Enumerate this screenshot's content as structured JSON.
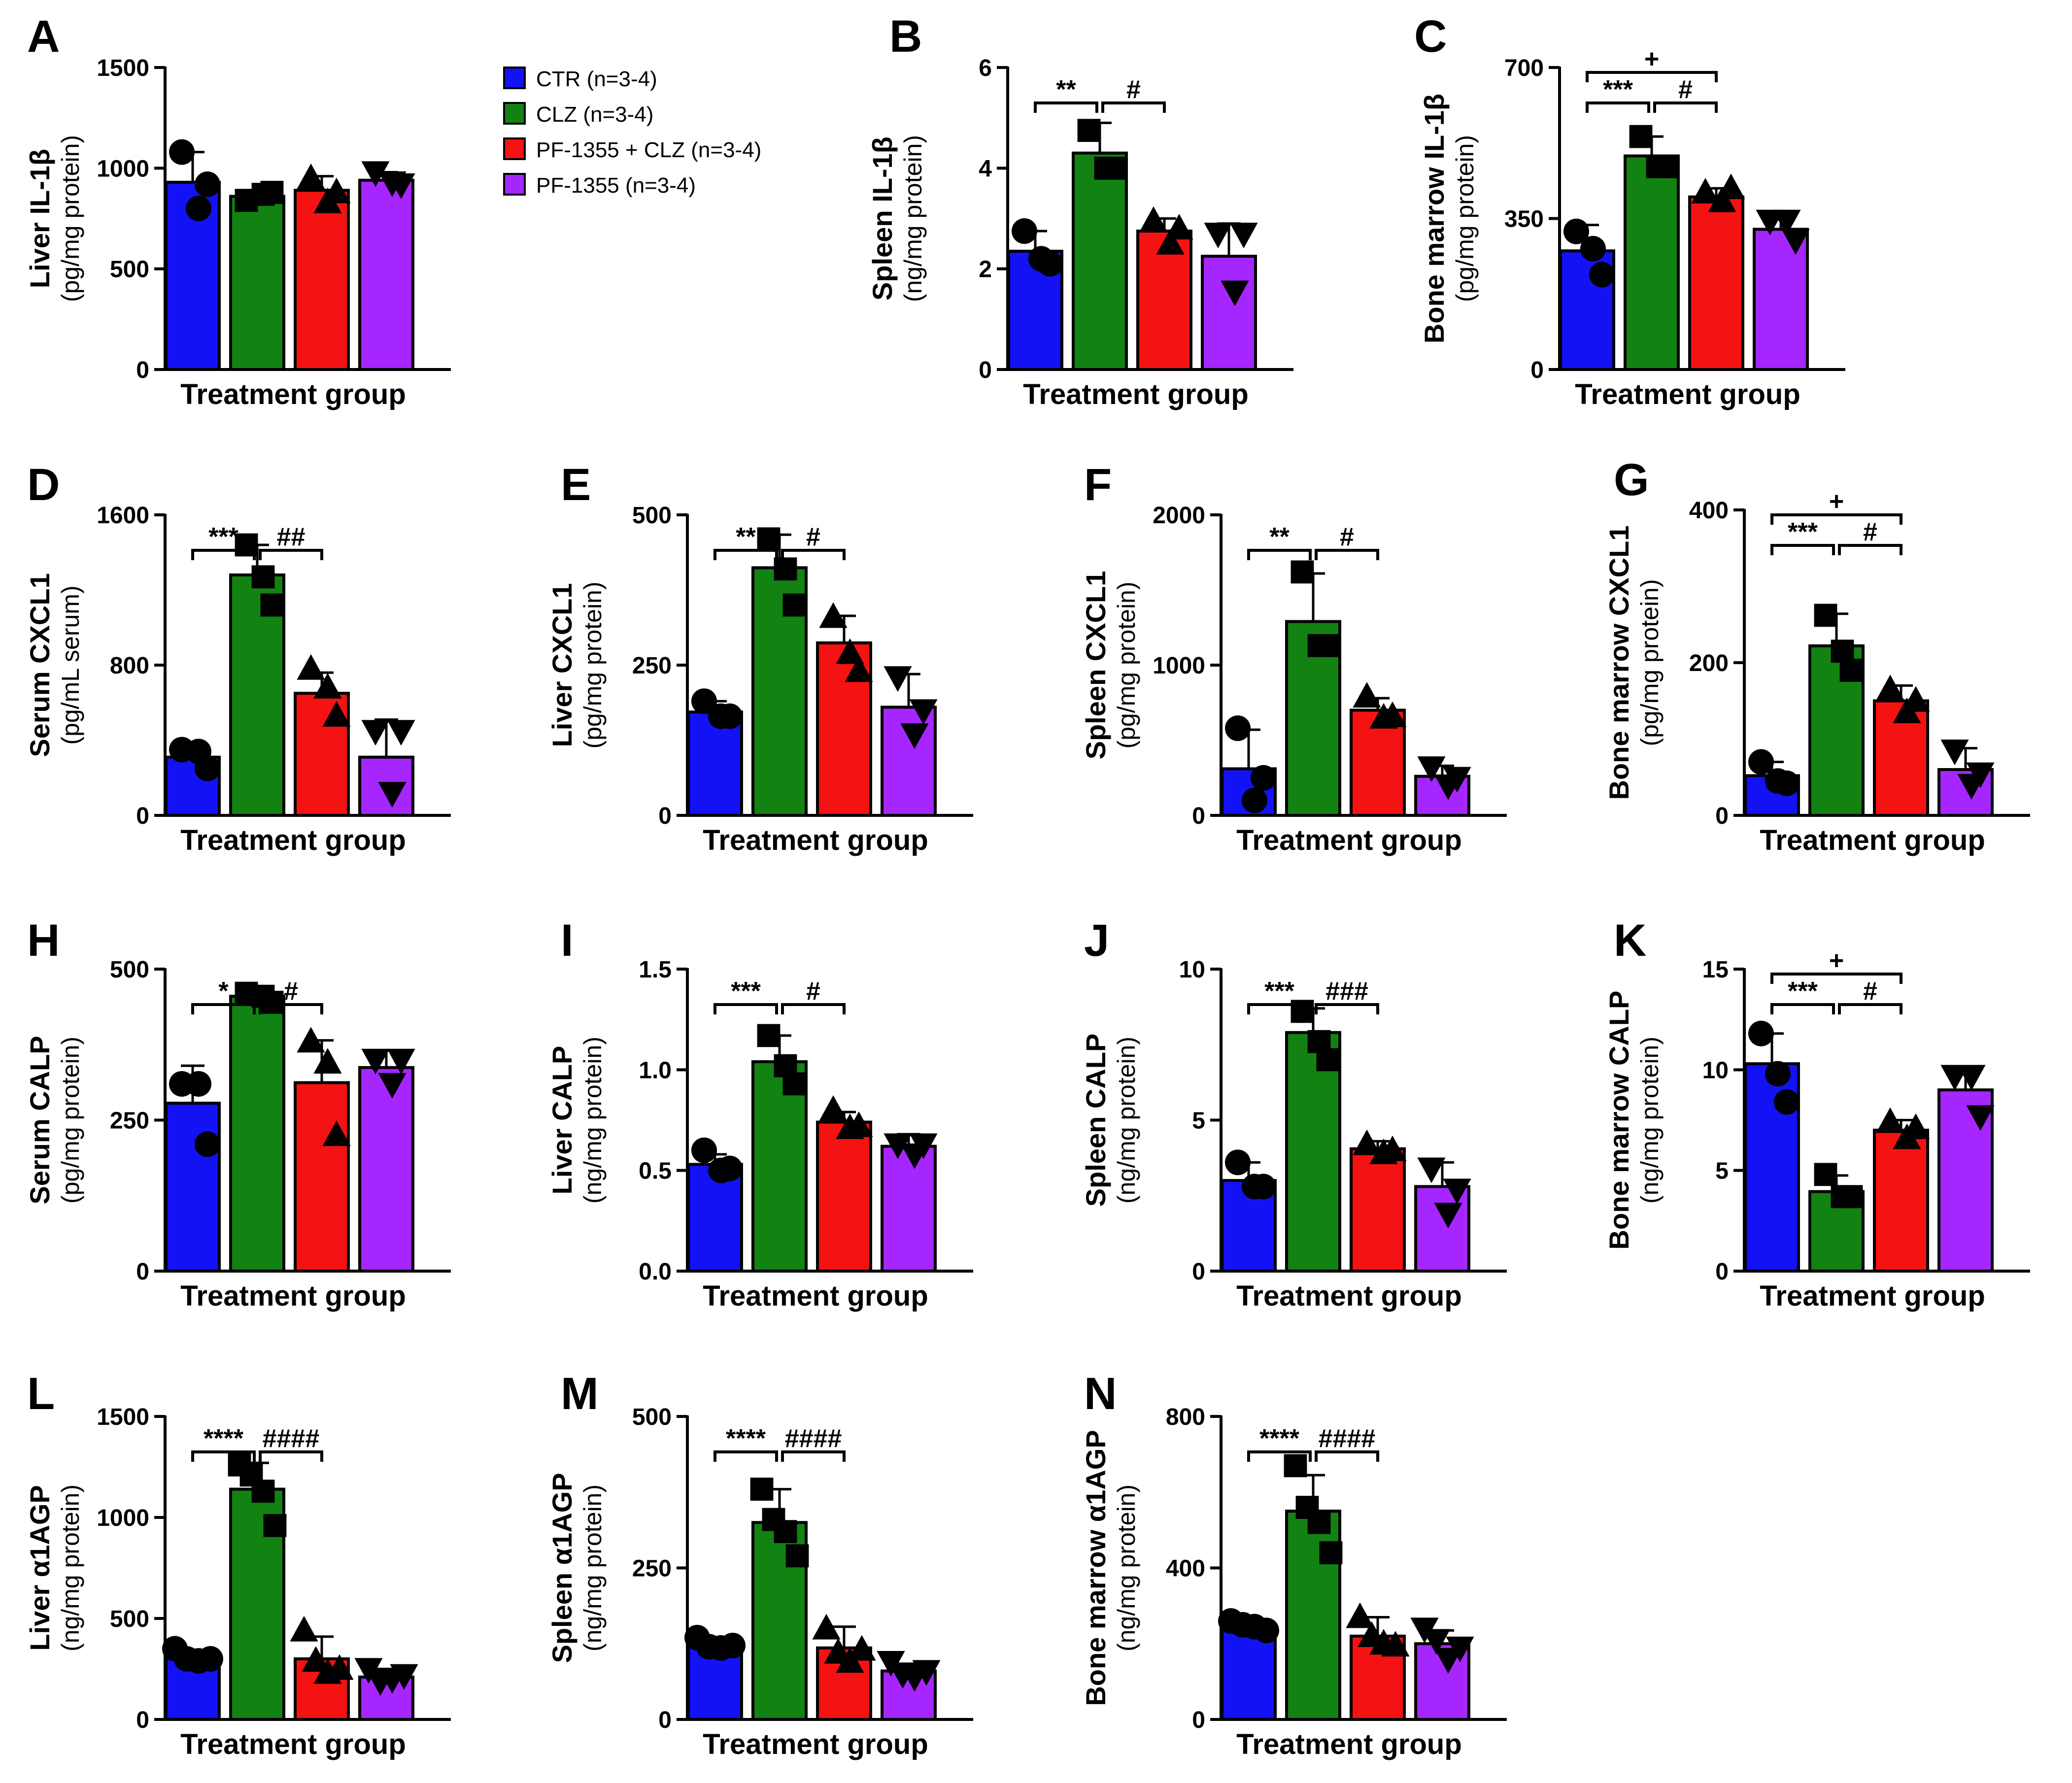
{
  "legend": {
    "entries": [
      {
        "label": "CTR (n=3-4)",
        "color": "#1212f5"
      },
      {
        "label": "CLZ (n=3-4)",
        "color": "#128212"
      },
      {
        "label": "PF-1355 + CLZ (n=3-4)",
        "color": "#f51212"
      },
      {
        "label": "PF-1355 (n=3-4)",
        "color": "#a526ff"
      }
    ]
  },
  "chart_data": [
    {
      "id": "A",
      "type": "bar",
      "ylabel": "Liver IL-1β",
      "yunit": "(pg/mg protein)",
      "xlabel": "Treatment group",
      "ylim": [
        0,
        1500
      ],
      "yticks": [
        "0",
        "500",
        "1000",
        "1500"
      ],
      "means": [
        930,
        860,
        890,
        940
      ],
      "sd": [
        150,
        30,
        70,
        40
      ],
      "points": [
        [
          1080,
          800,
          920
        ],
        [
          840,
          870,
          880
        ],
        [
          950,
          830,
          880
        ],
        [
          980,
          930,
          920
        ]
      ],
      "sig": []
    },
    {
      "id": "B",
      "type": "bar",
      "ylabel": "Spleen IL-1β",
      "yunit": "(ng/mg protein)",
      "xlabel": "Treatment group",
      "ylim": [
        0,
        6
      ],
      "yticks": [
        "0",
        "2",
        "4",
        "6"
      ],
      "means": [
        2.35,
        4.3,
        2.75,
        2.25
      ],
      "sd": [
        0.4,
        0.6,
        0.25,
        0.65
      ],
      "points": [
        [
          2.75,
          2.2,
          2.1
        ],
        [
          4.75,
          4.0,
          4.0
        ],
        [
          2.95,
          2.5,
          2.8
        ],
        [
          2.7,
          1.55,
          2.7
        ]
      ],
      "sig": [
        {
          "from": 0,
          "to": 1,
          "label": "**",
          "level": 0
        },
        {
          "from": 1,
          "to": 2,
          "label": "#",
          "level": 0
        }
      ]
    },
    {
      "id": "C",
      "type": "bar",
      "ylabel": "Bone marrow IL-1β",
      "yunit": "(pg/mg protein)",
      "xlabel": "Treatment group",
      "ylim": [
        0,
        700
      ],
      "yticks": [
        "0",
        "350",
        "700"
      ],
      "means": [
        275,
        495,
        400,
        325
      ],
      "sd": [
        60,
        45,
        20,
        30
      ],
      "points": [
        [
          320,
          280,
          220
        ],
        [
          540,
          470,
          470
        ],
        [
          410,
          390,
          420
        ],
        [
          345,
          345,
          300
        ]
      ],
      "sig": [
        {
          "from": 0,
          "to": 1,
          "label": "***",
          "level": 0
        },
        {
          "from": 1,
          "to": 2,
          "label": "#",
          "level": 0
        },
        {
          "from": 0,
          "to": 2,
          "label": "+",
          "level": 1
        }
      ]
    },
    {
      "id": "D",
      "type": "bar",
      "ylabel": "Serum CXCL1",
      "yunit": "(pg/mL serum)",
      "xlabel": "Treatment group",
      "ylim": [
        0,
        1600
      ],
      "yticks": [
        "0",
        "800",
        "1600"
      ],
      "means": [
        310,
        1280,
        650,
        310
      ],
      "sd": [
        50,
        160,
        110,
        200
      ],
      "points": [
        [
          350,
          340,
          250
        ],
        [
          1440,
          1270,
          1120
        ],
        [
          780,
          680,
          530
        ],
        [
          450,
          120,
          450
        ]
      ],
      "sig": [
        {
          "from": 0,
          "to": 1,
          "label": "***",
          "level": 0
        },
        {
          "from": 1,
          "to": 2,
          "label": "##",
          "level": 0
        }
      ]
    },
    {
      "id": "E",
      "type": "bar",
      "ylabel": "Liver CXCL1",
      "yunit": "(pg/mg protein)",
      "xlabel": "Treatment group",
      "ylim": [
        0,
        500
      ],
      "yticks": [
        "0",
        "250",
        "500"
      ],
      "means": [
        172,
        412,
        287,
        180
      ],
      "sd": [
        18,
        55,
        45,
        55
      ],
      "points": [
        [
          190,
          165,
          165
        ],
        [
          460,
          410,
          350
        ],
        [
          330,
          270,
          240
        ],
        [
          230,
          135,
          175
        ]
      ],
      "sig": [
        {
          "from": 0,
          "to": 1,
          "label": "**",
          "level": 0
        },
        {
          "from": 1,
          "to": 2,
          "label": "#",
          "level": 0
        }
      ]
    },
    {
      "id": "F",
      "type": "bar",
      "ylabel": "Spleen CXCL1",
      "yunit": "(pg/mg protein)",
      "xlabel": "Treatment group",
      "ylim": [
        0,
        2000
      ],
      "yticks": [
        "0",
        "1000",
        "2000"
      ],
      "means": [
        310,
        1290,
        700,
        260
      ],
      "sd": [
        260,
        320,
        80,
        70
      ],
      "points": [
        [
          580,
          100,
          250
        ],
        [
          1620,
          1130,
          1130
        ],
        [
          790,
          650,
          660
        ],
        [
          320,
          200,
          250
        ]
      ],
      "sig": [
        {
          "from": 0,
          "to": 1,
          "label": "**",
          "level": 0
        },
        {
          "from": 1,
          "to": 2,
          "label": "#",
          "level": 0
        }
      ]
    },
    {
      "id": "G",
      "type": "bar",
      "ylabel": "Bone marrow CXCL1",
      "yunit": "(pg/mg protein)",
      "xlabel": "Treatment group",
      "ylim": [
        0,
        400
      ],
      "yticks": [
        "0",
        "200",
        "400"
      ],
      "means": [
        52,
        222,
        150,
        60
      ],
      "sd": [
        18,
        42,
        20,
        28
      ],
      "points": [
        [
          70,
          45,
          42
        ],
        [
          262,
          215,
          190
        ],
        [
          165,
          135,
          150
        ],
        [
          85,
          40,
          55
        ]
      ],
      "sig": [
        {
          "from": 0,
          "to": 1,
          "label": "***",
          "level": 0
        },
        {
          "from": 1,
          "to": 2,
          "label": "#",
          "level": 0
        },
        {
          "from": 0,
          "to": 2,
          "label": "+",
          "level": 1
        }
      ]
    },
    {
      "id": "H",
      "type": "bar",
      "ylabel": "Serum CALP",
      "yunit": "(pg/mg protein)",
      "xlabel": "Treatment group",
      "ylim": [
        0,
        500
      ],
      "yticks": [
        "0",
        "250",
        "500"
      ],
      "means": [
        278,
        455,
        312,
        337
      ],
      "sd": [
        62,
        12,
        70,
        28
      ],
      "points": [
        [
          310,
          310,
          210
        ],
        [
          460,
          455,
          445
        ],
        [
          380,
          345,
          225
        ],
        [
          350,
          310,
          350
        ]
      ],
      "sig": [
        {
          "from": 0,
          "to": 1,
          "label": "*",
          "level": 0
        },
        {
          "from": 1,
          "to": 2,
          "label": "#",
          "level": 0
        }
      ]
    },
    {
      "id": "I",
      "type": "bar",
      "ylabel": "Liver CALP",
      "yunit": "(ng/mg protein)",
      "xlabel": "Treatment group",
      "ylim": [
        0,
        1.5
      ],
      "yticks": [
        "0.0",
        "0.5",
        "1.0",
        "1.5"
      ],
      "means": [
        0.53,
        1.04,
        0.74,
        0.62
      ],
      "sd": [
        0.05,
        0.13,
        0.05,
        0.06
      ],
      "points": [
        [
          0.6,
          0.5,
          0.51
        ],
        [
          1.17,
          1.02,
          0.93
        ],
        [
          0.8,
          0.71,
          0.72
        ],
        [
          0.63,
          0.58,
          0.63
        ]
      ],
      "sig": [
        {
          "from": 0,
          "to": 1,
          "label": "***",
          "level": 0
        },
        {
          "from": 1,
          "to": 2,
          "label": "#",
          "level": 0
        }
      ]
    },
    {
      "id": "J",
      "type": "bar",
      "ylabel": "Spleen  CALP",
      "yunit": "(ng/mg protein)",
      "xlabel": "Treatment group",
      "ylim": [
        0,
        10
      ],
      "yticks": [
        "0",
        "5",
        "10"
      ],
      "means": [
        3.0,
        7.9,
        4.05,
        2.8
      ],
      "sd": [
        0.6,
        0.8,
        0.25,
        0.8
      ],
      "points": [
        [
          3.6,
          2.8,
          2.8
        ],
        [
          8.6,
          7.6,
          7.0
        ],
        [
          4.2,
          3.9,
          4.0
        ],
        [
          3.4,
          1.9,
          2.7
        ]
      ],
      "sig": [
        {
          "from": 0,
          "to": 1,
          "label": "***",
          "level": 0
        },
        {
          "from": 1,
          "to": 2,
          "label": "###",
          "level": 0
        }
      ]
    },
    {
      "id": "K",
      "type": "bar",
      "ylabel": "Bone marrow CALP",
      "yunit": "(ng/mg protein)",
      "xlabel": "Treatment group",
      "ylim": [
        0,
        15
      ],
      "yticks": [
        "0",
        "5",
        "10",
        "15"
      ],
      "means": [
        10.3,
        3.95,
        7.0,
        9.0
      ],
      "sd": [
        1.5,
        0.8,
        0.5,
        0.9
      ],
      "points": [
        [
          11.8,
          9.8,
          8.4
        ],
        [
          4.8,
          3.7,
          3.7
        ],
        [
          7.4,
          6.6,
          7.1
        ],
        [
          9.7,
          9.7,
          7.7
        ]
      ],
      "sig": [
        {
          "from": 0,
          "to": 1,
          "label": "***",
          "level": 0
        },
        {
          "from": 1,
          "to": 2,
          "label": "#",
          "level": 0
        },
        {
          "from": 0,
          "to": 2,
          "label": "+",
          "level": 1
        }
      ]
    },
    {
      "id": "L",
      "type": "bar",
      "ylabel": "Liver α1AGP",
      "yunit": "(ng/mg protein)",
      "xlabel": "Treatment group",
      "ylim": [
        0,
        1500
      ],
      "yticks": [
        "0",
        "500",
        "1000",
        "1500"
      ],
      "means": [
        310,
        1140,
        300,
        210
      ],
      "sd": [
        30,
        130,
        110,
        40
      ],
      "points": [
        [
          350,
          300,
          290,
          300
        ],
        [
          1260,
          1210,
          1130,
          960
        ],
        [
          440,
          290,
          230,
          250
        ],
        [
          250,
          190,
          200,
          220
        ]
      ],
      "sig": [
        {
          "from": 0,
          "to": 1,
          "label": "****",
          "level": 0
        },
        {
          "from": 1,
          "to": 2,
          "label": "####",
          "level": 0
        }
      ]
    },
    {
      "id": "M",
      "type": "bar",
      "ylabel": "Spleen α1AGP",
      "yunit": "(ng/mg protein)",
      "xlabel": "Treatment group",
      "ylim": [
        0,
        500
      ],
      "yticks": [
        "0",
        "250",
        "500"
      ],
      "means": [
        125,
        325,
        118,
        80
      ],
      "sd": [
        10,
        55,
        35,
        12
      ],
      "points": [
        [
          135,
          120,
          118,
          122
        ],
        [
          380,
          330,
          310,
          270
        ],
        [
          150,
          110,
          95,
          115
        ],
        [
          95,
          75,
          70,
          80
        ]
      ],
      "sig": [
        {
          "from": 0,
          "to": 1,
          "label": "****",
          "level": 0
        },
        {
          "from": 1,
          "to": 2,
          "label": "####",
          "level": 0
        }
      ]
    },
    {
      "id": "N",
      "type": "bar",
      "ylabel": "Bone marrow α1AGP",
      "yunit": "(ng/mg protein)",
      "xlabel": "Treatment group",
      "ylim": [
        0,
        800
      ],
      "yticks": [
        "0",
        "400",
        "800"
      ],
      "means": [
        250,
        550,
        220,
        200
      ],
      "sd": [
        12,
        95,
        50,
        35
      ],
      "points": [
        [
          260,
          250,
          245,
          235
        ],
        [
          670,
          560,
          520,
          440
        ],
        [
          270,
          220,
          200,
          195
        ],
        [
          240,
          210,
          160,
          190
        ]
      ],
      "sig": [
        {
          "from": 0,
          "to": 1,
          "label": "****",
          "level": 0
        },
        {
          "from": 1,
          "to": 2,
          "label": "####",
          "level": 0
        }
      ]
    }
  ]
}
